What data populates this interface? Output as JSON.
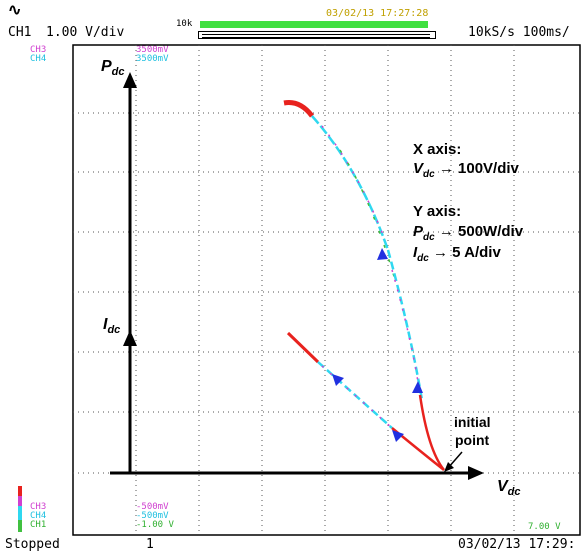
{
  "header": {
    "channel": "CH1",
    "volts_per_div": "1.00 V/div",
    "record_length": "10k",
    "timestamp_top": "03/02/13 17:27:28",
    "sample_rate": "10kS/s 100ms/"
  },
  "scale_labels": {
    "top": {
      "ch3_name": "CH3",
      "ch3_value": "3500mV",
      "ch4_name": "CH4",
      "ch4_value": "3500mV"
    },
    "bottom": {
      "ch3_name": "CH3",
      "ch3_value": "-500mV",
      "ch4_name": "CH4",
      "ch4_value": "-500mV",
      "ch1_name": "CH1",
      "ch1_value": "-1.00 V",
      "right_value": "7.00 V"
    }
  },
  "annotations": {
    "pdc_main": "P",
    "pdc_sub": "dc",
    "idc_main": "I",
    "idc_sub": "dc",
    "vdc_main": "V",
    "vdc_sub": "dc",
    "xaxis_title": "X axis:",
    "xaxis_scale_sym": "V",
    "xaxis_scale_sub": "dc",
    "xaxis_scale": "→ 100V/div",
    "yaxis_title": "Y axis:",
    "yaxis_p_sym": "P",
    "yaxis_p_sub": "dc",
    "yaxis_p_scale": "→ 500W/div",
    "yaxis_i_sym": "I",
    "yaxis_i_sub": "dc",
    "yaxis_i_scale": "→ 5 A/div",
    "initial_line1": "initial",
    "initial_line2": "point"
  },
  "status": {
    "state": "Stopped",
    "acquisition_count": "1",
    "timestamp_bottom": "03/02/13 17:29:"
  },
  "colors": {
    "trace_red": "#e8221e",
    "trace_cyan": "#2fd8f0",
    "trace_magenta": "#d040d0",
    "trace_green": "#40c040",
    "arrow_blue": "#2030e0",
    "record_bar_green": "#40e040",
    "timestamp_yellow": "#c0a000"
  }
}
